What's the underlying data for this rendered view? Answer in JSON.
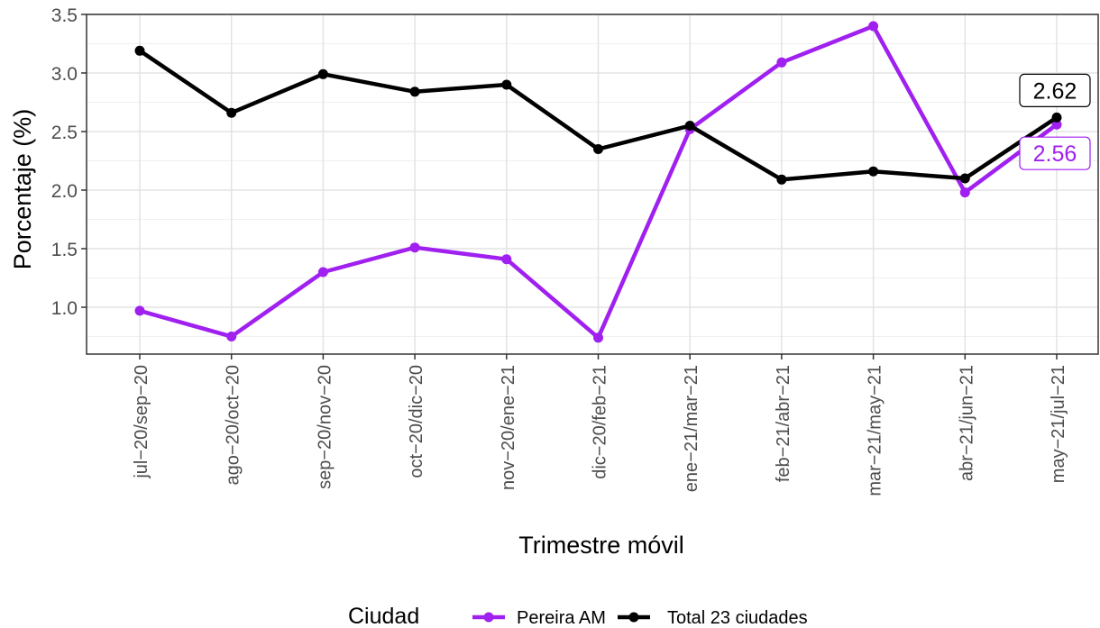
{
  "chart_data": {
    "type": "line",
    "xlabel": "Trimestre móvil",
    "ylabel": "Porcentaje (%)",
    "ylim": [
      0.6,
      3.5
    ],
    "y_ticks": [
      "1.0",
      "1.5",
      "2.0",
      "2.5",
      "3.0",
      "3.5"
    ],
    "grid": true,
    "legend_position": "bottom",
    "legend_title": "Ciudad",
    "categories": [
      "jul-20/sep-20",
      "ago-20/oct-20",
      "sep-20/nov-20",
      "oct-20/dic-20",
      "nov-20/ene-21",
      "dic-20/feb-21",
      "ene-21/mar-21",
      "feb-21/abr-21",
      "mar-21/may-21",
      "abr-21/jun-21",
      "may-21/jul-21"
    ],
    "series": [
      {
        "name": "Pereira AM",
        "color": "#a020f0",
        "values": [
          0.97,
          0.75,
          1.3,
          1.51,
          1.41,
          0.74,
          2.52,
          3.09,
          3.4,
          1.98,
          2.56
        ]
      },
      {
        "name": "Total 23 ciudades",
        "color": "#000000",
        "values": [
          3.19,
          2.66,
          2.99,
          2.84,
          2.9,
          2.35,
          2.55,
          2.09,
          2.16,
          2.1,
          2.62
        ]
      }
    ],
    "annotations": [
      {
        "label": "2.62",
        "series": "Total 23 ciudades",
        "category": "may-21/jul-21"
      },
      {
        "label": "2.56",
        "series": "Pereira AM",
        "category": "may-21/jul-21"
      }
    ]
  }
}
